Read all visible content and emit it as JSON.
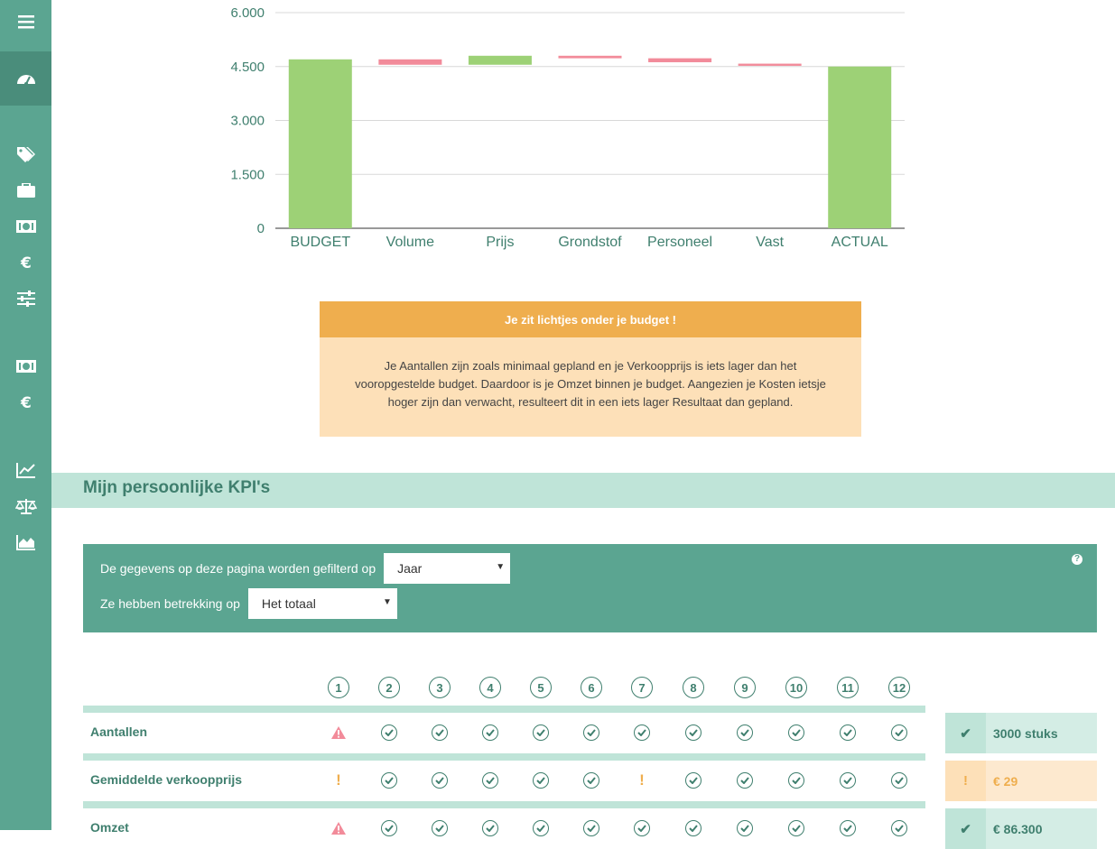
{
  "sidebar": {
    "icons": [
      "menu-icon",
      "dashboard-icon",
      "tags-icon",
      "briefcase-icon",
      "cash-icon",
      "euro-icon",
      "sliders-icon",
      "cash-icon",
      "euro-icon",
      "line-chart-icon",
      "balance-scale-icon",
      "area-chart-icon"
    ]
  },
  "chart_data": {
    "type": "bar",
    "subtype": "waterfall",
    "categories": [
      "BUDGET",
      "Volume",
      "Prijs",
      "Grondstof",
      "Personeel",
      "Vast",
      "ACTUAL"
    ],
    "bars": [
      {
        "category": "BUDGET",
        "start": 0,
        "end": 4700,
        "color": "#9dd176"
      },
      {
        "category": "Volume",
        "start": 4700,
        "end": 4550,
        "color": "#f28b9a"
      },
      {
        "category": "Prijs",
        "start": 4550,
        "end": 4800,
        "color": "#9dd176"
      },
      {
        "category": "Grondstof",
        "start": 4800,
        "end": 4730,
        "color": "#f28b9a"
      },
      {
        "category": "Personeel",
        "start": 4730,
        "end": 4620,
        "color": "#f28b9a"
      },
      {
        "category": "Vast",
        "start": 4580,
        "end": 4520,
        "color": "#f28b9a"
      },
      {
        "category": "ACTUAL",
        "start": 0,
        "end": 4500,
        "color": "#9dd176"
      }
    ],
    "yticks": [
      "0",
      "1.500",
      "3.000",
      "4.500",
      "6.000"
    ],
    "ytick_values": [
      0,
      1500,
      3000,
      4500,
      6000
    ],
    "ylim": [
      0,
      6000
    ],
    "grid": true
  },
  "alert": {
    "title": "Je zit lichtjes onder je budget !",
    "body": "Je Aantallen zijn zoals minimaal gepland en je Verkoopprijs is iets lager dan het vooropgestelde budget. Daardoor is je Omzet binnen je budget. Aangezien je Kosten ietsje hoger zijn dan verwacht, resulteert dit in een iets lager Resultaat dan gepland."
  },
  "kpi": {
    "title": "Mijn persoonlijke KPI's"
  },
  "filter": {
    "label1": "De gegevens op deze pagina worden gefilterd op",
    "select1": "Jaar",
    "label2": "Ze hebben betrekking op",
    "select2": "Het totaal",
    "help": "?"
  },
  "months": [
    "1",
    "2",
    "3",
    "4",
    "5",
    "6",
    "7",
    "8",
    "9",
    "10",
    "11",
    "12"
  ],
  "rows": [
    {
      "label": "Aantallen",
      "status": [
        "warning",
        "ok",
        "ok",
        "ok",
        "ok",
        "ok",
        "ok",
        "ok",
        "ok",
        "ok",
        "ok",
        "ok"
      ],
      "summary_icon": "✔",
      "summary_value": "3000 stuks",
      "summary_tone": "green"
    },
    {
      "label": "Gemiddelde verkoopprijs",
      "status": [
        "alert",
        "ok",
        "ok",
        "ok",
        "ok",
        "ok",
        "alert",
        "ok",
        "ok",
        "ok",
        "ok",
        "ok"
      ],
      "summary_icon": "!",
      "summary_value": "€ 29",
      "summary_tone": "orange"
    },
    {
      "label": "Omzet",
      "status": [
        "warning",
        "ok",
        "ok",
        "ok",
        "ok",
        "ok",
        "ok",
        "ok",
        "ok",
        "ok",
        "ok",
        "ok"
      ],
      "summary_icon": "✔",
      "summary_value": "€ 86.300",
      "summary_tone": "green"
    }
  ]
}
